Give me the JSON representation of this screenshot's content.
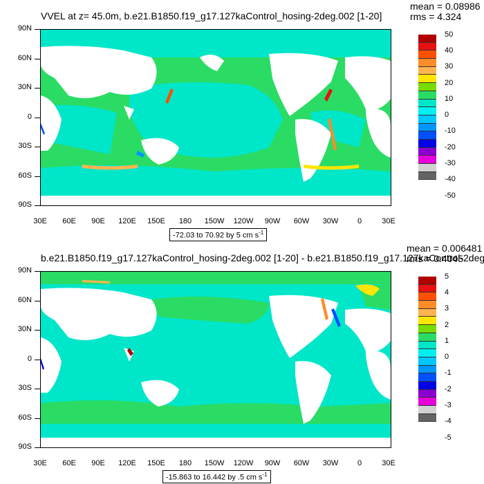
{
  "panels": [
    {
      "title": "VVEL at z=  45.0m, b.e21.B1850.f19_g17.127kaControl_hosing-2deg.002 [1-20]",
      "mean": "mean = 0.08986",
      "rms": "rms = 4.324",
      "range": "-72.03 to 70.92 by 5 cm s",
      "range_sup": "-1",
      "colorbar_labels": [
        "50",
        "40",
        "30",
        "20",
        "10",
        "0",
        "-10",
        "-20",
        "-30",
        "-40",
        "-50"
      ]
    },
    {
      "title": "b.e21.B1850.f19_g17.127kaControl_hosing-2deg.002 [1-20] - b.e21.B1850.f19_g17.127kaControl-2deg.",
      "mean": "mean = 0.006481",
      "rms": "rms = 0.4045",
      "range": "-15.863 to 16.442 by .5 cm s",
      "range_sup": "-1",
      "colorbar_labels": [
        "5",
        "4",
        "3",
        "2",
        "1",
        "0",
        "-1",
        "-2",
        "-3",
        "-4",
        "-5"
      ]
    }
  ],
  "lat_labels": [
    "90N",
    "60N",
    "30N",
    "0",
    "30S",
    "60S",
    "90S"
  ],
  "lon_labels": [
    "30E",
    "60E",
    "90E",
    "120E",
    "150E",
    "180",
    "150W",
    "120W",
    "90W",
    "60W",
    "30W",
    "0",
    "30E"
  ],
  "colorbar_colors": [
    "#b00000",
    "#e81010",
    "#ff5000",
    "#ff8c28",
    "#ffb450",
    "#ffe600",
    "#78dc00",
    "#2adc64",
    "#00e6c8",
    "#00f0f0",
    "#00c8ff",
    "#0096ff",
    "#0050ff",
    "#0000e6",
    "#8c00d2",
    "#e600dc",
    "#d2d2d2",
    "#646464"
  ],
  "colors": {
    "ocean_main": "#2adc64",
    "ocean_alt": "#00e6c8",
    "land": "#ffffff"
  }
}
